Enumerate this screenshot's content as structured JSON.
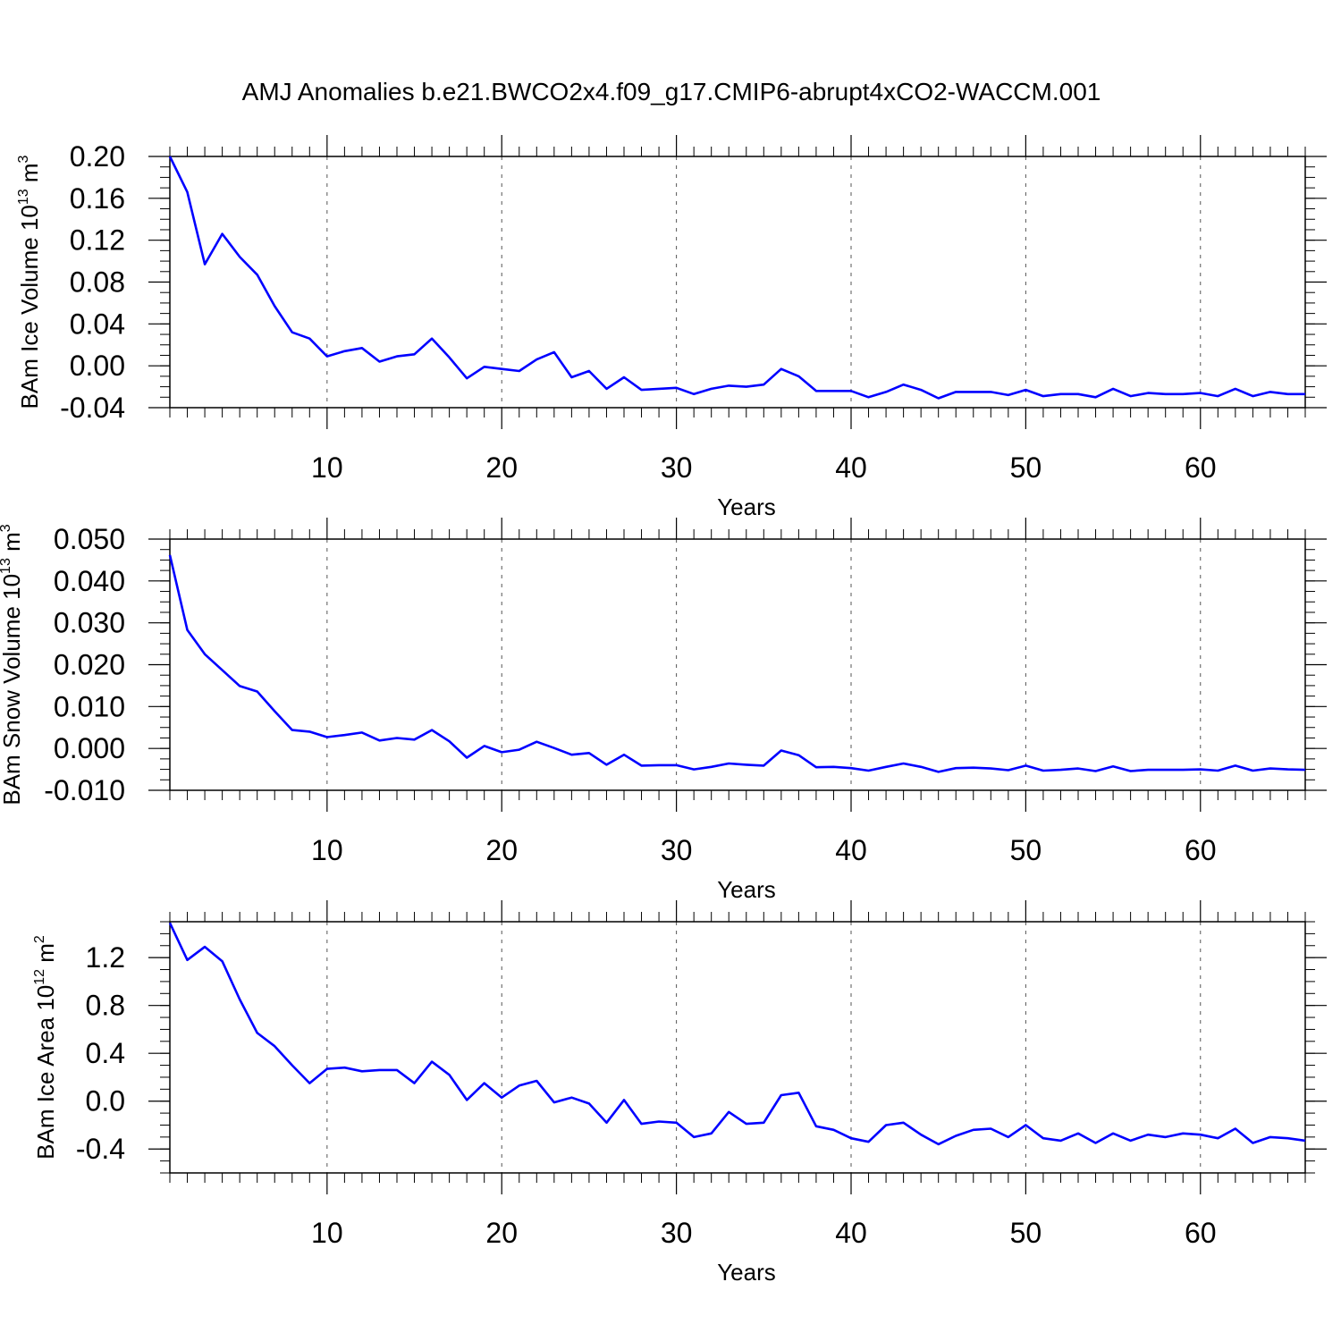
{
  "title": "AMJ Anomalies b.e21.BWCO2x4.f09_g17.CMIP6-abrupt4xCO2-WACCM.001",
  "line_color": "#0000ff",
  "chart_data": [
    {
      "type": "line",
      "id": "ice-volume",
      "title": "AMJ Anomalies b.e21.BWCO2x4.f09_g17.CMIP6-abrupt4xCO2-WACCM.001",
      "xlabel": "Years",
      "ylabel": {
        "main": "BAm Ice Volume 10",
        "exp": "13",
        "unit": " m",
        "unit_exp": "3"
      },
      "xlim": [
        1,
        66
      ],
      "ylim": [
        -0.04,
        0.2
      ],
      "x_ticks": [
        10,
        20,
        30,
        40,
        50,
        60
      ],
      "x_tick_labels": [
        "10",
        "20",
        "30",
        "40",
        "50",
        "60"
      ],
      "y_ticks": [
        -0.04,
        0.0,
        0.04,
        0.08,
        0.12,
        0.16,
        0.2
      ],
      "y_tick_labels": [
        "-0.04",
        "0.00",
        "0.04",
        "0.08",
        "0.12",
        "0.16",
        "0.20"
      ],
      "y_minor_step": 0.01,
      "grid": "vertical dashed at major x ticks",
      "series": [
        {
          "name": "BAm Ice Volume",
          "values": [
            0.2,
            0.166,
            0.097,
            0.126,
            0.104,
            0.087,
            0.057,
            0.032,
            0.026,
            0.009,
            0.014,
            0.017,
            0.004,
            0.009,
            0.011,
            0.026,
            0.008,
            -0.012,
            -0.001,
            -0.003,
            -0.005,
            0.006,
            0.013,
            -0.011,
            -0.005,
            -0.022,
            -0.011,
            -0.023,
            -0.022,
            -0.021,
            -0.027,
            -0.022,
            -0.019,
            -0.02,
            -0.018,
            -0.003,
            -0.01,
            -0.024,
            -0.024,
            -0.024,
            -0.03,
            -0.025,
            -0.018,
            -0.023,
            -0.031,
            -0.025,
            -0.025,
            -0.025,
            -0.028,
            -0.023,
            -0.029,
            -0.027,
            -0.027,
            -0.03,
            -0.022,
            -0.029,
            -0.026,
            -0.027,
            -0.027,
            -0.026,
            -0.029,
            -0.022,
            -0.029,
            -0.025,
            -0.027,
            -0.027
          ]
        }
      ]
    },
    {
      "type": "line",
      "id": "snow-volume",
      "xlabel": "Years",
      "ylabel": {
        "main": "BAm Snow Volume 10",
        "exp": "13",
        "unit": " m",
        "unit_exp": "3"
      },
      "xlim": [
        1,
        66
      ],
      "ylim": [
        -0.01,
        0.05
      ],
      "x_ticks": [
        10,
        20,
        30,
        40,
        50,
        60
      ],
      "x_tick_labels": [
        "10",
        "20",
        "30",
        "40",
        "50",
        "60"
      ],
      "y_ticks": [
        -0.01,
        0.0,
        0.01,
        0.02,
        0.03,
        0.04,
        0.05
      ],
      "y_tick_labels": [
        "-0.010",
        "0.000",
        "0.010",
        "0.020",
        "0.030",
        "0.040",
        "0.050"
      ],
      "y_minor_step": 0.0025,
      "grid": "vertical dashed at major x ticks",
      "series": [
        {
          "name": "BAm Snow Volume",
          "values": [
            0.0462,
            0.0283,
            0.0225,
            0.0187,
            0.0149,
            0.0136,
            0.0089,
            0.0044,
            0.004,
            0.0027,
            0.0032,
            0.0038,
            0.0019,
            0.0025,
            0.0021,
            0.0044,
            0.0017,
            -0.0022,
            0.0006,
            -0.0009,
            -0.0003,
            0.0016,
            0.0001,
            -0.0015,
            -0.0011,
            -0.0039,
            -0.0015,
            -0.0041,
            -0.004,
            -0.004,
            -0.005,
            -0.0044,
            -0.0036,
            -0.0039,
            -0.0041,
            -0.0005,
            -0.0016,
            -0.0045,
            -0.0044,
            -0.0047,
            -0.0053,
            -0.0044,
            -0.0036,
            -0.0044,
            -0.0056,
            -0.0047,
            -0.0046,
            -0.0048,
            -0.0052,
            -0.0041,
            -0.0053,
            -0.0051,
            -0.0048,
            -0.0054,
            -0.0043,
            -0.0054,
            -0.0051,
            -0.0051,
            -0.0051,
            -0.005,
            -0.0053,
            -0.0041,
            -0.0053,
            -0.0048,
            -0.005,
            -0.0051
          ]
        }
      ]
    },
    {
      "type": "line",
      "id": "ice-area",
      "xlabel": "Years",
      "ylabel": {
        "main": "BAm Ice Area 10",
        "exp": "12",
        "unit": " m",
        "unit_exp": "2"
      },
      "xlim": [
        1,
        66
      ],
      "ylim": [
        -0.6,
        1.5
      ],
      "x_ticks": [
        10,
        20,
        30,
        40,
        50,
        60
      ],
      "x_tick_labels": [
        "10",
        "20",
        "30",
        "40",
        "50",
        "60"
      ],
      "y_ticks": [
        -0.4,
        0.0,
        0.4,
        0.8,
        1.2
      ],
      "y_tick_labels": [
        "-0.4",
        "0.0",
        "0.4",
        "0.8",
        "1.2"
      ],
      "y_minor_step": 0.1,
      "grid": "vertical dashed at major x ticks",
      "series": [
        {
          "name": "BAm Ice Area",
          "values": [
            1.49,
            1.18,
            1.29,
            1.17,
            0.85,
            0.57,
            0.46,
            0.3,
            0.15,
            0.27,
            0.28,
            0.25,
            0.26,
            0.26,
            0.15,
            0.33,
            0.22,
            0.01,
            0.15,
            0.03,
            0.13,
            0.17,
            -0.01,
            0.03,
            -0.02,
            -0.18,
            0.01,
            -0.19,
            -0.17,
            -0.18,
            -0.3,
            -0.27,
            -0.09,
            -0.19,
            -0.18,
            0.05,
            0.07,
            -0.21,
            -0.24,
            -0.31,
            -0.34,
            -0.2,
            -0.18,
            -0.28,
            -0.36,
            -0.29,
            -0.24,
            -0.23,
            -0.3,
            -0.2,
            -0.31,
            -0.33,
            -0.27,
            -0.35,
            -0.27,
            -0.33,
            -0.28,
            -0.3,
            -0.27,
            -0.28,
            -0.31,
            -0.23,
            -0.35,
            -0.3,
            -0.31,
            -0.33
          ]
        }
      ]
    }
  ]
}
